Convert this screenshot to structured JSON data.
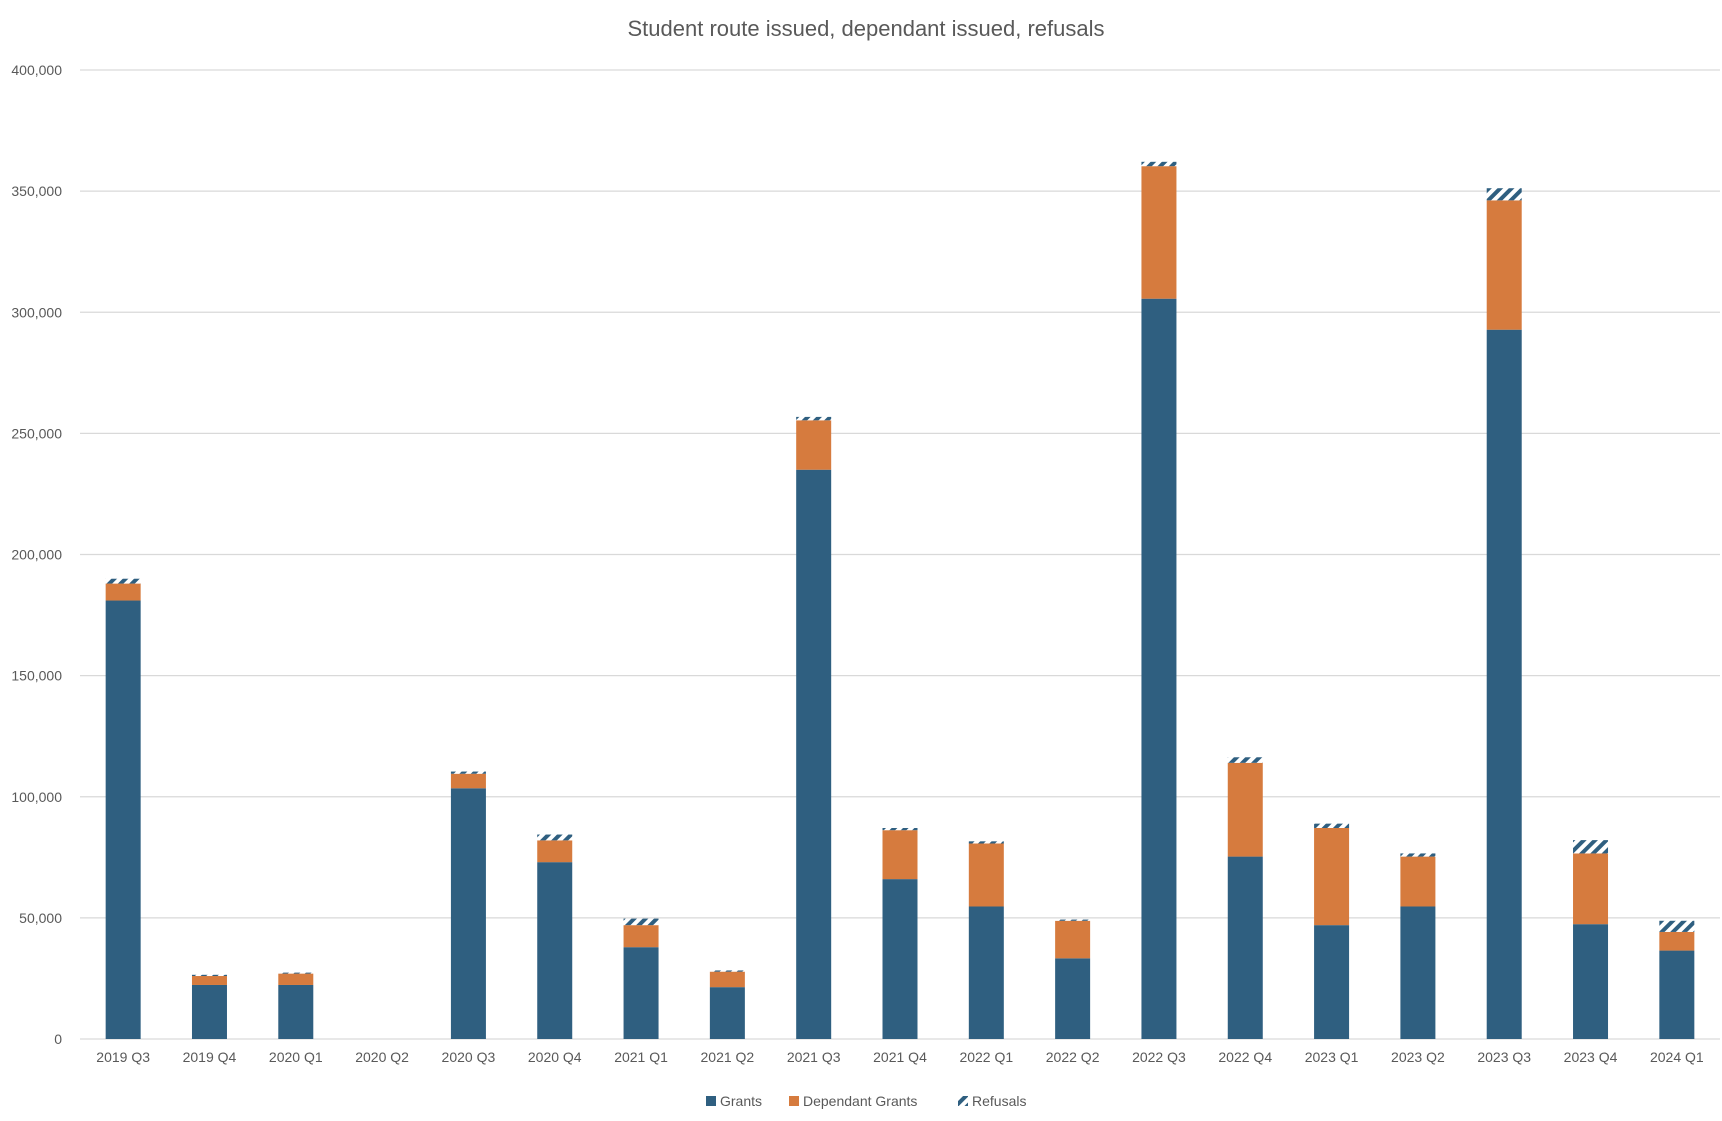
{
  "chart_data": {
    "type": "bar",
    "stacked": true,
    "title": "Student route issued, dependant issued, refusals",
    "xlabel": "",
    "ylabel": "",
    "ylim": [
      0,
      400000
    ],
    "yticks": [
      0,
      50000,
      100000,
      150000,
      200000,
      250000,
      300000,
      350000,
      400000
    ],
    "ytick_labels": [
      "0",
      "50,000",
      "100,000",
      "150,000",
      "200,000",
      "250,000",
      "300,000",
      "350,000",
      "400,000"
    ],
    "grid": true,
    "legend_position": "bottom",
    "categories": [
      "2019 Q3",
      "2019 Q4",
      "2020 Q1",
      "2020 Q2",
      "2020 Q3",
      "2020 Q4",
      "2021 Q1",
      "2021 Q2",
      "2021 Q3",
      "2021 Q4",
      "2022 Q1",
      "2022 Q2",
      "2022 Q3",
      "2022 Q4",
      "2023 Q1",
      "2023 Q2",
      "2023 Q3",
      "2023 Q4",
      "2024 Q1"
    ],
    "series": [
      {
        "name": "Grants",
        "color": "#2f5f80",
        "pattern": "solid",
        "values": [
          181000,
          22300,
          22300,
          0,
          103500,
          73000,
          37900,
          21400,
          235000,
          66000,
          54700,
          33300,
          305600,
          75300,
          47000,
          54700,
          292800,
          47400,
          36500
        ]
      },
      {
        "name": "Dependant Grants",
        "color": "#d67b3e",
        "pattern": "solid",
        "values": [
          7000,
          3700,
          4700,
          0,
          6000,
          9000,
          9100,
          6400,
          20400,
          20200,
          26000,
          15500,
          54700,
          38700,
          40100,
          20600,
          53400,
          29200,
          7700
        ]
      },
      {
        "name": "Refusals",
        "color": "#2f5f80",
        "pattern": "diagonal-stripes",
        "values": [
          2000,
          500,
          400,
          0,
          900,
          2400,
          2700,
          500,
          1400,
          900,
          900,
          500,
          1800,
          2300,
          1800,
          1300,
          5000,
          5500,
          4600
        ]
      }
    ]
  }
}
